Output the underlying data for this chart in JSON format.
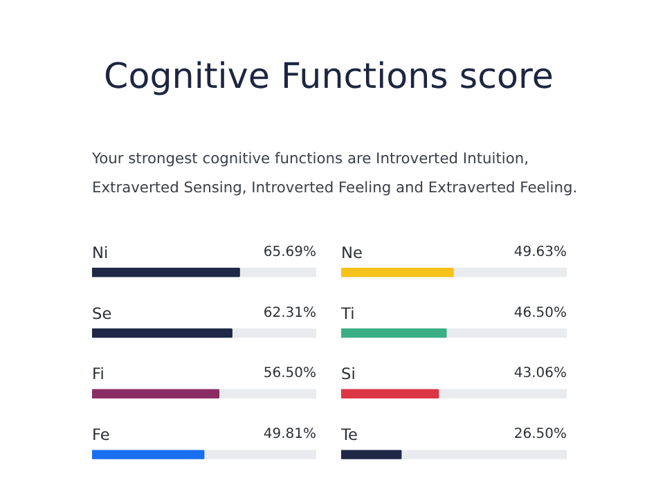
{
  "chart_data": [
    {
      "type": "bar",
      "orientation": "horizontal",
      "title": "Cognitive Functions score",
      "subtitle": "Your strongest cognitive functions are Introverted Intuition, Extraverted Sensing, Introverted Feeling and Extraverted Feeling.",
      "categories": [
        "Ni",
        "Se",
        "Fi",
        "Fe"
      ],
      "values": [
        65.69,
        62.31,
        56.5,
        49.81
      ],
      "value_labels": [
        "65.69%",
        "62.31%",
        "56.50%",
        "49.81%"
      ],
      "colors": [
        "#1f2846",
        "#1f2846",
        "#8a2d64",
        "#1a6ff0"
      ],
      "xlim": [
        0,
        100
      ],
      "tick_labels": false
    },
    {
      "type": "bar",
      "orientation": "horizontal",
      "categories": [
        "Ne",
        "Ti",
        "Si",
        "Te"
      ],
      "values": [
        49.63,
        46.5,
        43.06,
        26.5
      ],
      "value_labels": [
        "49.63%",
        "46.50%",
        "43.06%",
        "26.50%"
      ],
      "colors": [
        "#f7c21a",
        "#3aaf85",
        "#dc3545",
        "#1f2846"
      ],
      "xlim": [
        0,
        100
      ],
      "tick_labels": false
    }
  ]
}
